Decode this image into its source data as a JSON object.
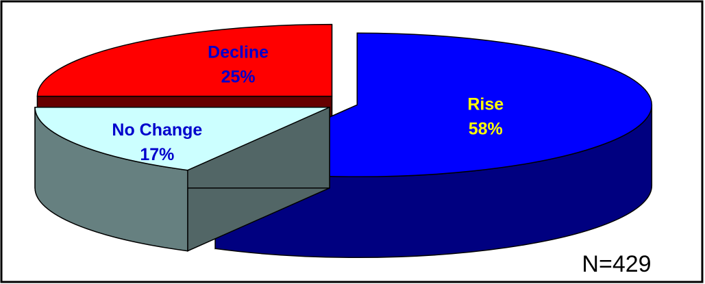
{
  "chart_data": {
    "type": "pie",
    "categories": [
      "Rise",
      "No Change",
      "Decline"
    ],
    "values": [
      58,
      17,
      25
    ],
    "value_labels": [
      "58%",
      "17%",
      "25%"
    ],
    "colors": [
      "#0000ff",
      "#ccffff",
      "#ff0000"
    ],
    "annotation": "N=429"
  }
}
